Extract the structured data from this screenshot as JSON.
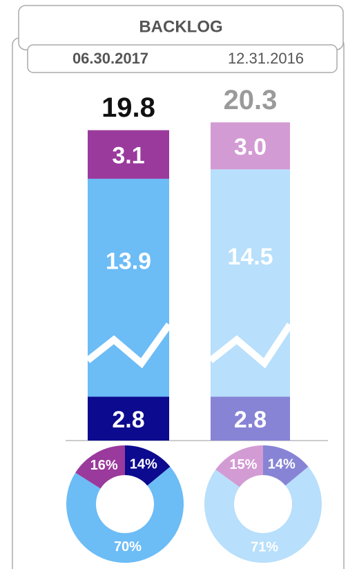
{
  "chart_data": [
    {
      "type": "bar",
      "stacked": true,
      "title": "BACKLOG",
      "categories": [
        "06.30.2017",
        "12.31.2016"
      ],
      "totals": [
        19.8,
        20.3
      ],
      "total_colors": [
        "#111111",
        "#9a9a9a"
      ],
      "series": [
        {
          "values": [
            2.8,
            2.8
          ],
          "colors": [
            "#0c0a8e",
            "#8784d6"
          ]
        },
        {
          "values": [
            13.9,
            14.5
          ],
          "colors": [
            "#6cbcf6",
            "#b8dffb"
          ]
        },
        {
          "values": [
            3.1,
            3.0
          ],
          "value_labels": [
            "3.1",
            "3.0"
          ],
          "colors": [
            "#9a3a9c",
            "#d39bd3"
          ]
        }
      ]
    },
    {
      "type": "donut",
      "donuts": [
        {
          "values": [
            14,
            70,
            16
          ],
          "value_labels": [
            "14%",
            "70%",
            "16%"
          ],
          "colors": [
            "#0c0a8e",
            "#6cbcf6",
            "#9a3a9c"
          ]
        },
        {
          "values": [
            14,
            71,
            15
          ],
          "value_labels": [
            "14%",
            "71%",
            "15%"
          ],
          "colors": [
            "#8784d6",
            "#b8dffb",
            "#d39bd3"
          ]
        }
      ]
    }
  ]
}
